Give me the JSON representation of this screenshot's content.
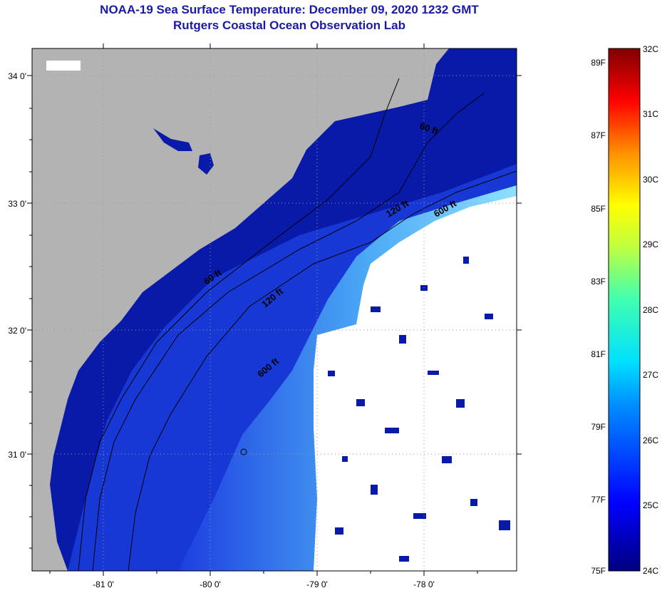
{
  "header": {
    "title": "NOAA-19 Sea Surface Temperature:  December 09, 2020 1232 GMT",
    "subtitle": "Rutgers Coastal Ocean Observation Lab"
  },
  "map": {
    "lat_labels": [
      "34 0'",
      "33 0'",
      "32 0'",
      "31 0'"
    ],
    "lon_labels": [
      "-81 0'",
      "-80 0'",
      "-79 0'",
      "-78 0'"
    ],
    "isobaths": [
      "60 ft",
      "120 ft",
      "600 ft"
    ],
    "colors": {
      "land": "#b3b3b3",
      "cloud": "#ffffff",
      "cold_water": "#0a1aa8",
      "shelf_water": "#2e55f0",
      "gulf_stream": "#7fd8ff"
    }
  },
  "colorbar": {
    "fahrenheit": [
      "89F",
      "87F",
      "85F",
      "83F",
      "81F",
      "79F",
      "77F",
      "75F"
    ],
    "celsius": [
      "32C",
      "31C",
      "30C",
      "29C",
      "28C",
      "27C",
      "26C",
      "25C",
      "24C"
    ]
  }
}
